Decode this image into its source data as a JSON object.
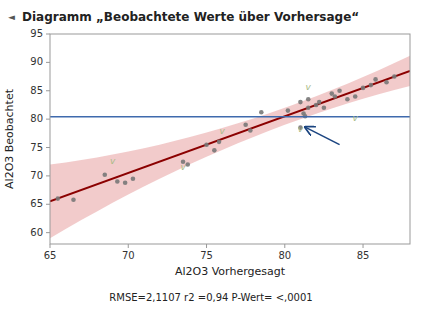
{
  "chart_data": {
    "type": "scatter",
    "title": "Diagramm „Beobachtete Werte über Vorhersage“",
    "title_icon": "◄",
    "x_label": "Al2O3 Vorhergesagt",
    "y_label": "Al2O3 Beobachtet",
    "footnote": "RMSE=2,1107 r2 =0,94 P-Wert= <,0001",
    "xlim": [
      65,
      88
    ],
    "ylim": [
      58,
      95
    ],
    "xticks": [
      65,
      70,
      75,
      80,
      85
    ],
    "yticks": [
      60,
      65,
      70,
      75,
      80,
      85,
      90,
      95
    ],
    "grid": false,
    "series": [
      {
        "type": "band",
        "color": "#E8A0A0",
        "x": [
          65,
          66,
          67,
          68,
          69,
          70,
          71,
          72,
          73,
          74,
          75,
          76,
          77,
          78,
          79,
          80,
          80.5,
          81,
          82,
          83,
          84,
          85,
          86,
          87,
          88
        ],
        "lower": [
          59.0,
          60.6244,
          62.2071,
          63.7482,
          65.2477,
          66.7055,
          68.1217,
          69.4964,
          70.8293,
          72.1207,
          73.3704,
          74.5786,
          75.7451,
          76.8699,
          77.9532,
          78.9948,
          79.5,
          79.9948,
          80.9532,
          81.8699,
          82.7451,
          83.5786,
          84.3704,
          85.1207,
          85.8293
        ],
        "upper": [
          72.0,
          72.3756,
          72.7929,
          73.2518,
          73.7523,
          74.2945,
          74.8783,
          75.5036,
          76.1707,
          76.8793,
          77.6296,
          78.4214,
          79.2549,
          80.1301,
          81.0468,
          82.0052,
          82.5,
          83.0052,
          84.0468,
          85.1301,
          86.2549,
          87.4214,
          88.6296,
          89.8793,
          91.1707
        ]
      },
      {
        "type": "line",
        "color": "#8B0000",
        "x": [
          65,
          88
        ],
        "values": [
          65.5,
          88.5
        ]
      },
      {
        "type": "scatter",
        "color": "#787878",
        "x": [
          65.5,
          66.5,
          68.5,
          69.3,
          69.8,
          70.3,
          73.5,
          73.8,
          75.0,
          75.5,
          75.8,
          77.5,
          77.8,
          78.5,
          80.2,
          81.0,
          81.0,
          81.2,
          81.3,
          81.5,
          81.5,
          82.0,
          82.2,
          82.5,
          83.0,
          83.2,
          83.5,
          84.0,
          84.5,
          85.0,
          85.5,
          85.8,
          86.5,
          87.0
        ],
        "values": [
          66.0,
          65.8,
          70.2,
          69.0,
          68.8,
          69.5,
          72.5,
          72.0,
          75.5,
          74.5,
          76.0,
          79.0,
          78.0,
          81.2,
          81.5,
          78.5,
          83.0,
          81.0,
          80.5,
          82.0,
          83.5,
          82.5,
          83.0,
          82.0,
          84.5,
          84.0,
          85.0,
          83.5,
          84.0,
          85.5,
          86.0,
          87.0,
          86.5,
          87.5
        ]
      }
    ],
    "reference_lines": [
      {
        "y": 80.4,
        "color": "#3F6AAD"
      }
    ],
    "annotations": [
      {
        "text": "v",
        "x": 81.0,
        "y": 78.2,
        "color": "#AABB88"
      },
      {
        "text": "v",
        "x": 81.5,
        "y": 85.5,
        "color": "#AABB88"
      },
      {
        "text": "v",
        "x": 84.5,
        "y": 80.2,
        "color": "#AABB88"
      },
      {
        "text": "v",
        "x": 69.0,
        "y": 72.5,
        "color": "#AABB88"
      },
      {
        "text": "v",
        "x": 73.5,
        "y": 71.5,
        "color": "#AABB88"
      },
      {
        "text": "v",
        "x": 76.0,
        "y": 77.8,
        "color": "#AABB88"
      }
    ],
    "arrows": [
      {
        "x": [
          83.5,
          81.3
        ],
        "y": [
          75.5,
          78.6
        ],
        "color": "#1A4480"
      }
    ]
  }
}
